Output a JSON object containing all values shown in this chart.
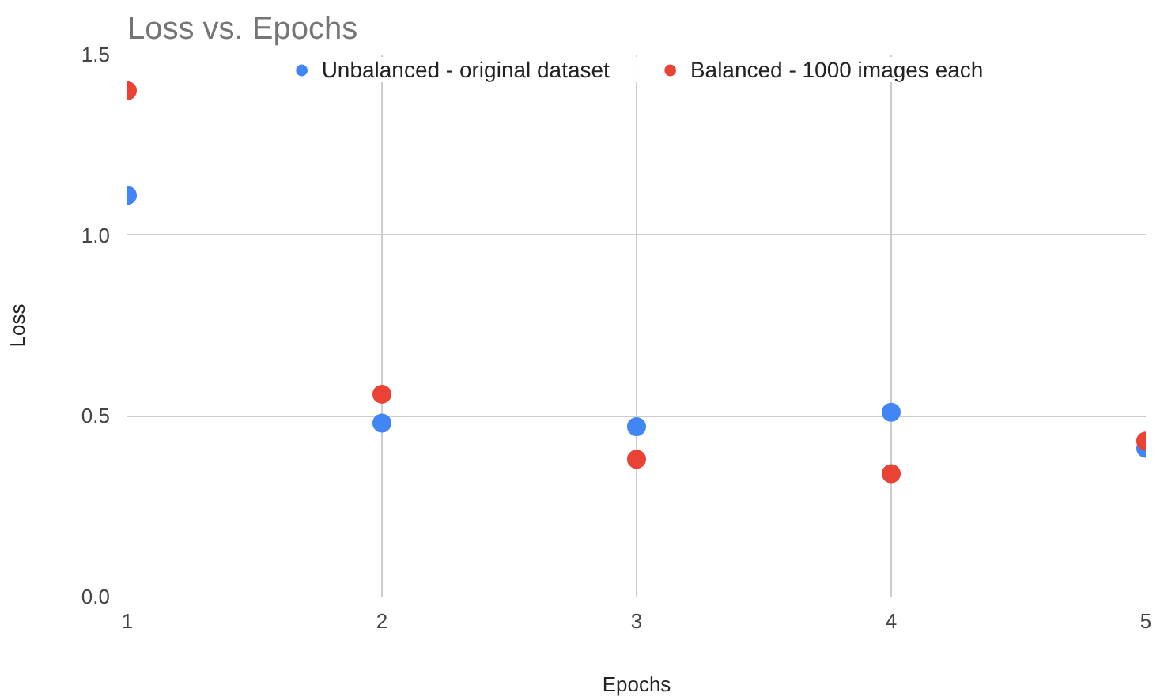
{
  "chart_data": {
    "type": "scatter",
    "title": "Loss vs. Epochs",
    "xlabel": "Epochs",
    "ylabel": "Loss",
    "x": [
      1,
      2,
      3,
      4,
      5
    ],
    "series": [
      {
        "name": "Unbalanced - original dataset",
        "color": "#4285f4",
        "values": [
          1.11,
          0.48,
          0.47,
          0.51,
          0.41
        ]
      },
      {
        "name": "Balanced - 1000 images each",
        "color": "#ea4335",
        "values": [
          1.4,
          0.56,
          0.38,
          0.34,
          0.43
        ]
      }
    ],
    "xlim": [
      1,
      5
    ],
    "xticks": [
      1,
      2,
      3,
      4,
      5
    ],
    "ylim": [
      0,
      1.5
    ],
    "yticks": [
      {
        "value": 0,
        "label": "0.0"
      },
      {
        "value": 0.5,
        "label": "0.5"
      },
      {
        "value": 1,
        "label": "1.0"
      },
      {
        "value": 1.5,
        "label": "1.5"
      }
    ],
    "grid": true,
    "legend": "top",
    "marker": "circle"
  }
}
